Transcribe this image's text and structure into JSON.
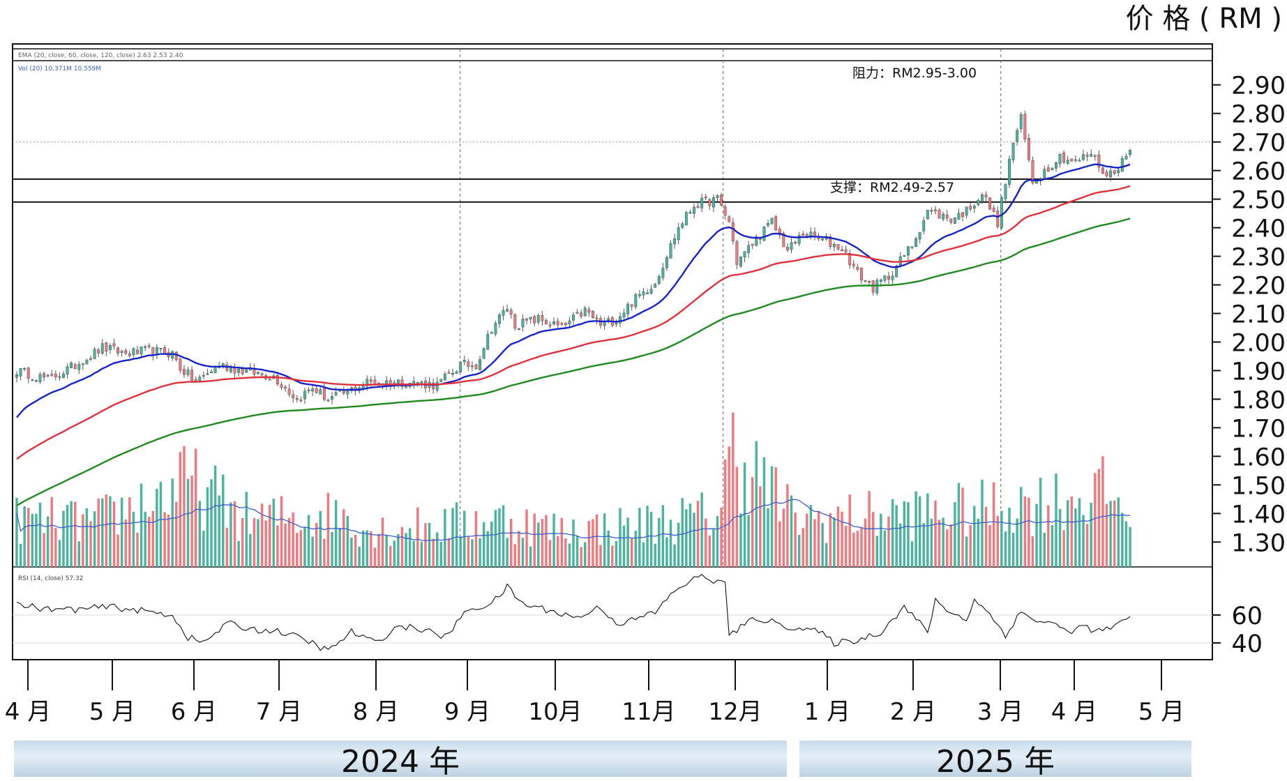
{
  "chart_data": {
    "type": "candlestick",
    "y_axis_title": "价 格 ( RM )",
    "legend_text": {
      "ma_line": "EMA (20, close, 60, close, 120, close)  2.63  2.53  2.40",
      "vol_line": "Vol (20)  10.371M  10.559M",
      "rsi_line": "RSI (14, close)  57.32"
    },
    "y_ticks": [
      "2.90",
      "2.80",
      "2.70",
      "2.60",
      "2.50",
      "2.40",
      "2.30",
      "2.20",
      "2.10",
      "2.00",
      "1.90",
      "1.80",
      "1.70",
      "1.60",
      "1.50",
      "1.40",
      "1.30"
    ],
    "ylim": [
      1.23,
      2.97
    ],
    "rsi_ticks": [
      "60",
      "40"
    ],
    "rsi_lim": [
      30,
      92
    ],
    "x_ticks": [
      "4 月",
      "5 月",
      "6 月",
      "7 月",
      "8 月",
      "9 月",
      "10月",
      "11月",
      "12月",
      "1 月",
      "2 月",
      "3 月",
      "4 月",
      "5 月"
    ],
    "years": [
      "2024 年",
      "2025 年"
    ],
    "annotations": {
      "resistance": "阻力：RM2.95-3.00",
      "support": "支撑：RM2.49-2.57"
    },
    "support_band": [
      2.49,
      2.57
    ],
    "price_anchors": [
      [
        0,
        1.9
      ],
      [
        8,
        1.87
      ],
      [
        14,
        1.91
      ],
      [
        22,
        1.98
      ],
      [
        28,
        1.96
      ],
      [
        34,
        1.97
      ],
      [
        40,
        1.96
      ],
      [
        42,
        1.91
      ],
      [
        46,
        1.86
      ],
      [
        52,
        1.92
      ],
      [
        58,
        1.9
      ],
      [
        66,
        1.88
      ],
      [
        72,
        1.8
      ],
      [
        76,
        1.84
      ],
      [
        80,
        1.8
      ],
      [
        84,
        1.82
      ],
      [
        90,
        1.86
      ],
      [
        100,
        1.86
      ],
      [
        108,
        1.85
      ],
      [
        114,
        1.92
      ],
      [
        118,
        1.92
      ],
      [
        122,
        2.05
      ],
      [
        126,
        2.12
      ],
      [
        128,
        2.06
      ],
      [
        134,
        2.08
      ],
      [
        140,
        2.05
      ],
      [
        146,
        2.11
      ],
      [
        150,
        2.06
      ],
      [
        154,
        2.08
      ],
      [
        158,
        2.14
      ],
      [
        164,
        2.21
      ],
      [
        170,
        2.4
      ],
      [
        174,
        2.48
      ],
      [
        180,
        2.5
      ],
      [
        183,
        2.42
      ],
      [
        185,
        2.28
      ],
      [
        190,
        2.36
      ],
      [
        194,
        2.42
      ],
      [
        198,
        2.32
      ],
      [
        202,
        2.38
      ],
      [
        208,
        2.35
      ],
      [
        212,
        2.33
      ],
      [
        216,
        2.24
      ],
      [
        220,
        2.19
      ],
      [
        224,
        2.23
      ],
      [
        230,
        2.34
      ],
      [
        234,
        2.46
      ],
      [
        240,
        2.43
      ],
      [
        244,
        2.46
      ],
      [
        248,
        2.52
      ],
      [
        252,
        2.42
      ],
      [
        256,
        2.7
      ],
      [
        258,
        2.78
      ],
      [
        261,
        2.56
      ],
      [
        264,
        2.6
      ],
      [
        268,
        2.65
      ],
      [
        272,
        2.63
      ],
      [
        276,
        2.66
      ],
      [
        280,
        2.58
      ],
      [
        284,
        2.63
      ],
      [
        286,
        2.67
      ]
    ],
    "volume_anchors": [
      [
        0,
        9
      ],
      [
        20,
        8.5
      ],
      [
        42,
        15
      ],
      [
        44,
        16
      ],
      [
        60,
        9
      ],
      [
        84,
        10
      ],
      [
        90,
        7
      ],
      [
        110,
        8
      ],
      [
        124,
        9
      ],
      [
        140,
        7
      ],
      [
        160,
        8
      ],
      [
        180,
        10
      ],
      [
        184,
        22
      ],
      [
        186,
        21
      ],
      [
        200,
        9
      ],
      [
        230,
        10
      ],
      [
        250,
        11
      ],
      [
        254,
        12
      ],
      [
        260,
        12
      ],
      [
        270,
        13
      ],
      [
        280,
        14
      ],
      [
        286,
        10
      ]
    ],
    "volume_ylim": [
      0,
      23
    ],
    "rsi_anchors": [
      [
        0,
        68
      ],
      [
        8,
        64
      ],
      [
        16,
        64
      ],
      [
        24,
        66
      ],
      [
        32,
        63
      ],
      [
        40,
        60
      ],
      [
        44,
        44
      ],
      [
        48,
        40
      ],
      [
        54,
        54
      ],
      [
        60,
        50
      ],
      [
        68,
        48
      ],
      [
        76,
        40
      ],
      [
        80,
        34
      ],
      [
        86,
        48
      ],
      [
        92,
        40
      ],
      [
        98,
        52
      ],
      [
        104,
        50
      ],
      [
        110,
        44
      ],
      [
        116,
        64
      ],
      [
        122,
        68
      ],
      [
        126,
        80
      ],
      [
        130,
        68
      ],
      [
        136,
        64
      ],
      [
        144,
        58
      ],
      [
        150,
        66
      ],
      [
        154,
        54
      ],
      [
        158,
        56
      ],
      [
        164,
        62
      ],
      [
        170,
        80
      ],
      [
        176,
        88
      ],
      [
        182,
        82
      ],
      [
        183,
        46
      ],
      [
        190,
        58
      ],
      [
        198,
        52
      ],
      [
        206,
        48
      ],
      [
        210,
        40
      ],
      [
        216,
        42
      ],
      [
        222,
        48
      ],
      [
        228,
        66
      ],
      [
        234,
        48
      ],
      [
        236,
        70
      ],
      [
        240,
        62
      ],
      [
        244,
        56
      ],
      [
        246,
        72
      ],
      [
        250,
        60
      ],
      [
        254,
        46
      ],
      [
        258,
        62
      ],
      [
        262,
        56
      ],
      [
        266,
        54
      ],
      [
        270,
        48
      ],
      [
        274,
        52
      ],
      [
        278,
        48
      ],
      [
        282,
        52
      ],
      [
        286,
        57
      ]
    ],
    "series": [
      {
        "name": "EMA 20",
        "color": "#1524c8"
      },
      {
        "name": "EMA 60",
        "color": "#e0303b"
      },
      {
        "name": "EMA 120",
        "color": "#1f8a1f"
      }
    ],
    "colors": {
      "up": "#4cb39f",
      "down": "#ee7a80",
      "wick": "#555555",
      "vol_ma": "#3a5fcf",
      "frame": "#111111"
    }
  }
}
